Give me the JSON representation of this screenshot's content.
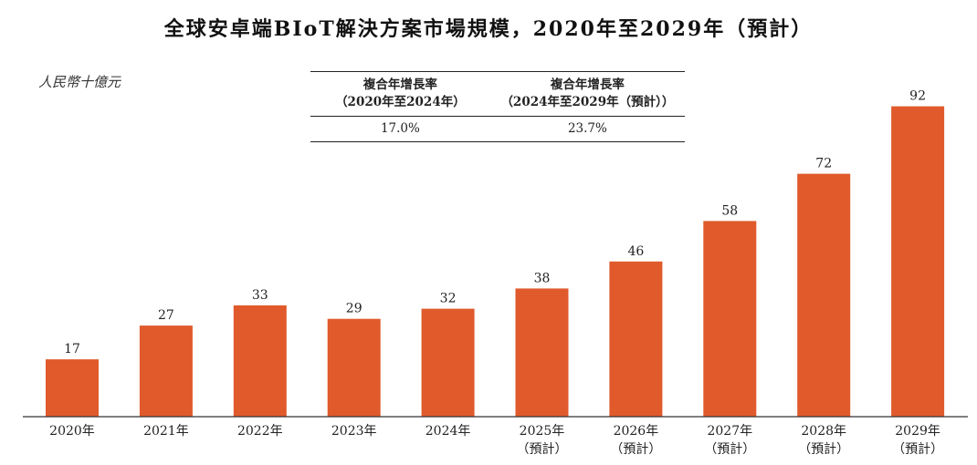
{
  "title": "全球安卓端BIoT解決方案市場規模，2020年至2029年（預計）",
  "unit_label": "人民幣十億元",
  "cagr_table": {
    "headers": [
      {
        "line1": "複合年增長率",
        "line2": "（2020年至2024年）"
      },
      {
        "line1": "複合年增長率",
        "line2": "（2024年至2029年（預計））"
      }
    ],
    "values": [
      "17.0%",
      "23.7%"
    ]
  },
  "colors": {
    "bar": "#E05A2B",
    "axis": "#333333"
  },
  "chart_data": {
    "type": "bar",
    "title": "全球安卓端BIoT解決方案市場規模，2020年至2029年（預計）",
    "ylabel": "人民幣十億元",
    "xlabel": "",
    "ylim": [
      0,
      100
    ],
    "categories": [
      {
        "label": "2020年",
        "sub": ""
      },
      {
        "label": "2021年",
        "sub": ""
      },
      {
        "label": "2022年",
        "sub": ""
      },
      {
        "label": "2023年",
        "sub": ""
      },
      {
        "label": "2024年",
        "sub": ""
      },
      {
        "label": "2025年",
        "sub": "（預計）"
      },
      {
        "label": "2026年",
        "sub": "（預計）"
      },
      {
        "label": "2027年",
        "sub": "（預計）"
      },
      {
        "label": "2028年",
        "sub": "（預計）"
      },
      {
        "label": "2029年",
        "sub": "（預計）"
      }
    ],
    "values": [
      17,
      27,
      33,
      29,
      32,
      38,
      46,
      58,
      72,
      92
    ],
    "grid": false,
    "legend": "none"
  }
}
